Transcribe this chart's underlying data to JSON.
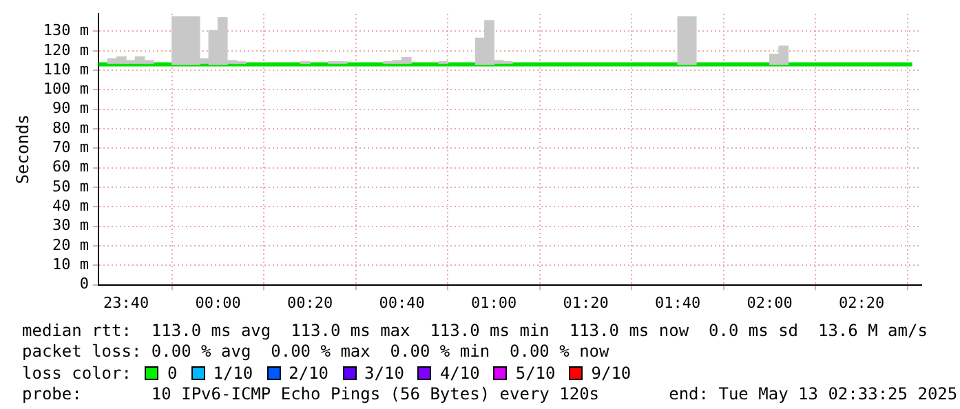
{
  "chart_data": {
    "type": "bar",
    "ylabel": "Seconds",
    "xlim": [
      "2025-05-12T23:34",
      "2025-05-13T02:33"
    ],
    "ylim": [
      0,
      139
    ],
    "xticks": [
      {
        "value": "2025-05-12T23:40",
        "label": "23:40"
      },
      {
        "value": "2025-05-13T00:00",
        "label": "00:00"
      },
      {
        "value": "2025-05-13T00:20",
        "label": "00:20"
      },
      {
        "value": "2025-05-13T00:40",
        "label": "00:40"
      },
      {
        "value": "2025-05-13T01:00",
        "label": "01:00"
      },
      {
        "value": "2025-05-13T01:20",
        "label": "01:20"
      },
      {
        "value": "2025-05-13T01:40",
        "label": "01:40"
      },
      {
        "value": "2025-05-13T02:00",
        "label": "02:00"
      },
      {
        "value": "2025-05-13T02:20",
        "label": "02:20"
      }
    ],
    "yticks": [
      {
        "value": 0,
        "label": "0"
      },
      {
        "value": 10,
        "label": "10 m"
      },
      {
        "value": 20,
        "label": "20 m"
      },
      {
        "value": 30,
        "label": "30 m"
      },
      {
        "value": 40,
        "label": "40 m"
      },
      {
        "value": 50,
        "label": "50 m"
      },
      {
        "value": 60,
        "label": "60 m"
      },
      {
        "value": 70,
        "label": "70 m"
      },
      {
        "value": 80,
        "label": "80 m"
      },
      {
        "value": 90,
        "label": "90 m"
      },
      {
        "value": 100,
        "label": "100 m"
      },
      {
        "value": 110,
        "label": "110 m"
      },
      {
        "value": 120,
        "label": "120 m"
      },
      {
        "value": 130,
        "label": "130 m"
      }
    ],
    "grid": true,
    "series": [
      {
        "color": "#c8c8c8",
        "x": [
          "2025-05-12T23:37",
          "2025-05-12T23:39",
          "2025-05-12T23:41",
          "2025-05-12T23:43",
          "2025-05-12T23:45",
          "2025-05-12T23:51",
          "2025-05-12T23:53",
          "2025-05-12T23:55",
          "2025-05-12T23:57",
          "2025-05-12T23:59",
          "2025-05-13T00:01",
          "2025-05-13T00:03",
          "2025-05-13T00:05",
          "2025-05-13T00:19",
          "2025-05-13T00:25",
          "2025-05-13T00:27",
          "2025-05-13T00:37",
          "2025-05-13T00:39",
          "2025-05-13T00:41",
          "2025-05-13T00:49",
          "2025-05-13T00:57",
          "2025-05-13T00:59",
          "2025-05-13T01:01",
          "2025-05-13T01:03",
          "2025-05-13T01:41",
          "2025-05-13T01:43",
          "2025-05-13T02:01",
          "2025-05-13T02:03"
        ],
        "base": [
          113.5,
          113.5,
          113.5,
          113.5,
          113.5,
          113,
          113,
          113,
          113.5,
          113,
          113,
          113.5,
          113.5,
          113.5,
          113.5,
          113.5,
          113.5,
          113.5,
          113.5,
          113.5,
          113,
          113,
          113.5,
          113.5,
          113,
          113,
          113,
          113
        ],
        "values": [
          2.5,
          3.5,
          1.5,
          3.5,
          1.5,
          24.5,
          24.5,
          24.5,
          2.5,
          17.5,
          24,
          1.5,
          1,
          1,
          1,
          1,
          1,
          1.5,
          3,
          1,
          13.5,
          22.5,
          1.5,
          1,
          24.5,
          24.5,
          5.3,
          9.4
        ]
      },
      {
        "type": "line",
        "color": "#00e000",
        "x": [
          "2025-05-12T23:34",
          "2025-05-13T02:31"
        ],
        "values": [
          113,
          113
        ]
      }
    ],
    "annotations": [
      "median rtt:  113.0 ms avg  113.0 ms max  113.0 ms min  113.0 ms now  0.0 ms sd  13.6 M am/s",
      "packet loss: 0.00 % avg  0.00 % max  0.00 % min  0.00 % now",
      "loss color:  0  1/10  2/10  3/10  4/10  5/10  9/10",
      "probe:       10 IPv6-ICMP Echo Pings (56 Bytes) every 120s       end: Tue May 13 02:33:25 2025"
    ]
  }
}
